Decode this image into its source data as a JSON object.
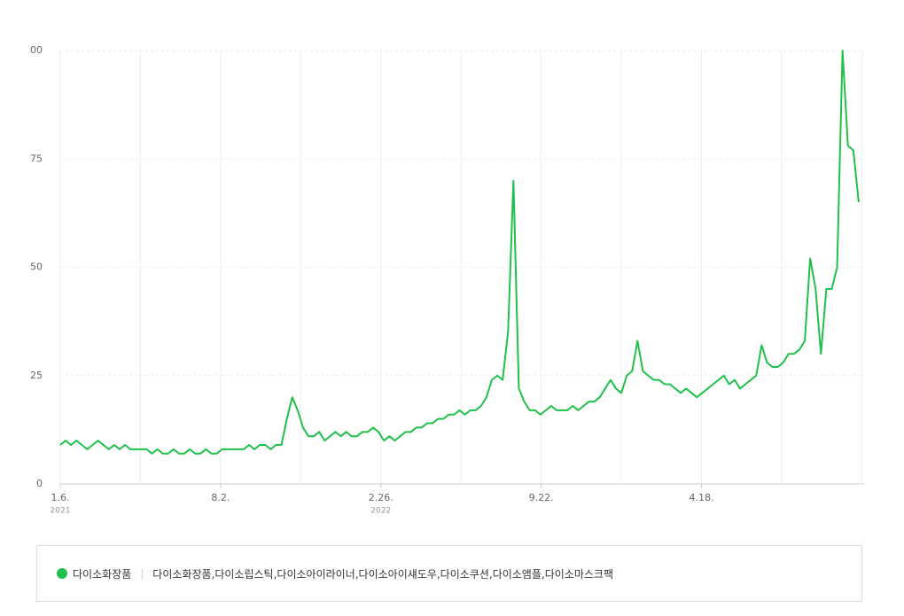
{
  "chart_data": {
    "type": "line",
    "x": [
      0,
      7,
      14,
      21,
      28,
      35,
      42,
      49,
      56,
      63,
      70,
      77,
      84,
      91,
      98,
      105,
      112,
      119,
      126,
      133,
      140,
      147,
      154,
      161,
      168,
      175,
      182,
      189,
      196,
      203,
      210,
      217,
      224,
      231,
      238,
      245,
      252,
      259,
      266,
      273,
      280,
      287,
      294,
      301,
      308,
      315,
      322,
      329,
      336,
      343,
      350,
      357,
      364,
      371,
      378,
      385,
      392,
      399,
      406,
      413,
      420,
      427,
      434,
      441,
      448,
      455,
      462,
      469,
      476,
      483,
      490,
      497,
      504,
      511,
      518,
      525,
      532,
      539,
      546,
      553,
      560,
      567,
      574,
      581,
      588,
      595,
      602,
      609,
      616,
      623,
      630,
      637,
      644,
      651,
      658,
      665,
      672,
      679,
      686,
      693,
      700,
      707,
      714,
      721,
      728,
      735,
      742,
      749,
      756,
      763,
      770,
      777,
      784,
      791,
      798,
      805,
      812,
      819,
      826,
      833,
      840,
      847,
      854,
      861,
      868,
      875,
      882,
      889,
      896,
      903,
      910,
      917,
      924,
      931,
      938,
      945,
      952,
      959,
      966,
      973,
      980,
      987,
      994,
      1001,
      1008,
      1015,
      1022,
      1029,
      1036
    ],
    "series": [
      {
        "name": "다이소화장품",
        "color": "#1fc14a",
        "values": [
          9,
          10,
          9,
          10,
          9,
          8,
          9,
          10,
          9,
          8,
          9,
          8,
          9,
          8,
          8,
          8,
          8,
          7,
          8,
          7,
          7,
          8,
          7,
          7,
          8,
          7,
          7,
          8,
          7,
          7,
          8,
          8,
          8,
          8,
          8,
          9,
          8,
          9,
          9,
          8,
          9,
          9,
          15,
          20,
          17,
          13,
          11,
          11,
          12,
          10,
          11,
          12,
          11,
          12,
          11,
          11,
          12,
          12,
          13,
          12,
          10,
          11,
          10,
          11,
          12,
          12,
          13,
          13,
          14,
          14,
          15,
          15,
          16,
          16,
          17,
          16,
          17,
          17,
          18,
          20,
          24,
          25,
          24,
          35,
          70,
          22,
          19,
          17,
          17,
          16,
          17,
          18,
          17,
          17,
          17,
          18,
          17,
          18,
          19,
          19,
          20,
          22,
          24,
          22,
          21,
          25,
          26,
          33,
          26,
          25,
          24,
          24,
          23,
          23,
          22,
          21,
          22,
          21,
          20,
          21,
          22,
          23,
          24,
          25,
          23,
          24,
          22,
          23,
          24,
          25,
          32,
          28,
          27,
          27,
          28,
          30,
          30,
          31,
          33,
          52,
          45,
          30,
          45,
          45,
          50,
          100,
          78,
          77,
          65
        ]
      }
    ],
    "keywords": "다이소화장품,다이소립스틱,다이소아이라이너,다이소아이섀도우,다이소쿠션,다이소앰플,다이소마스크팩",
    "xlim": [
      0,
      1043
    ],
    "xticks": [
      {
        "value": 0,
        "label": "1.6."
      },
      {
        "value": 208,
        "label": "8.2."
      },
      {
        "value": 416,
        "label": "2.26."
      },
      {
        "value": 624,
        "label": "9.22."
      },
      {
        "value": 832,
        "label": "4.18."
      }
    ],
    "year_labels": [
      {
        "value": 0,
        "label": "2021"
      },
      {
        "value": 416,
        "label": "2022"
      }
    ],
    "xgrid": [
      0,
      104,
      208,
      312,
      416,
      520,
      624,
      728,
      832,
      936,
      1040
    ],
    "ylim": [
      0,
      100
    ],
    "yticks": [
      0,
      25,
      50,
      75,
      {
        "value": 100,
        "label": "00"
      }
    ],
    "grid": true
  }
}
